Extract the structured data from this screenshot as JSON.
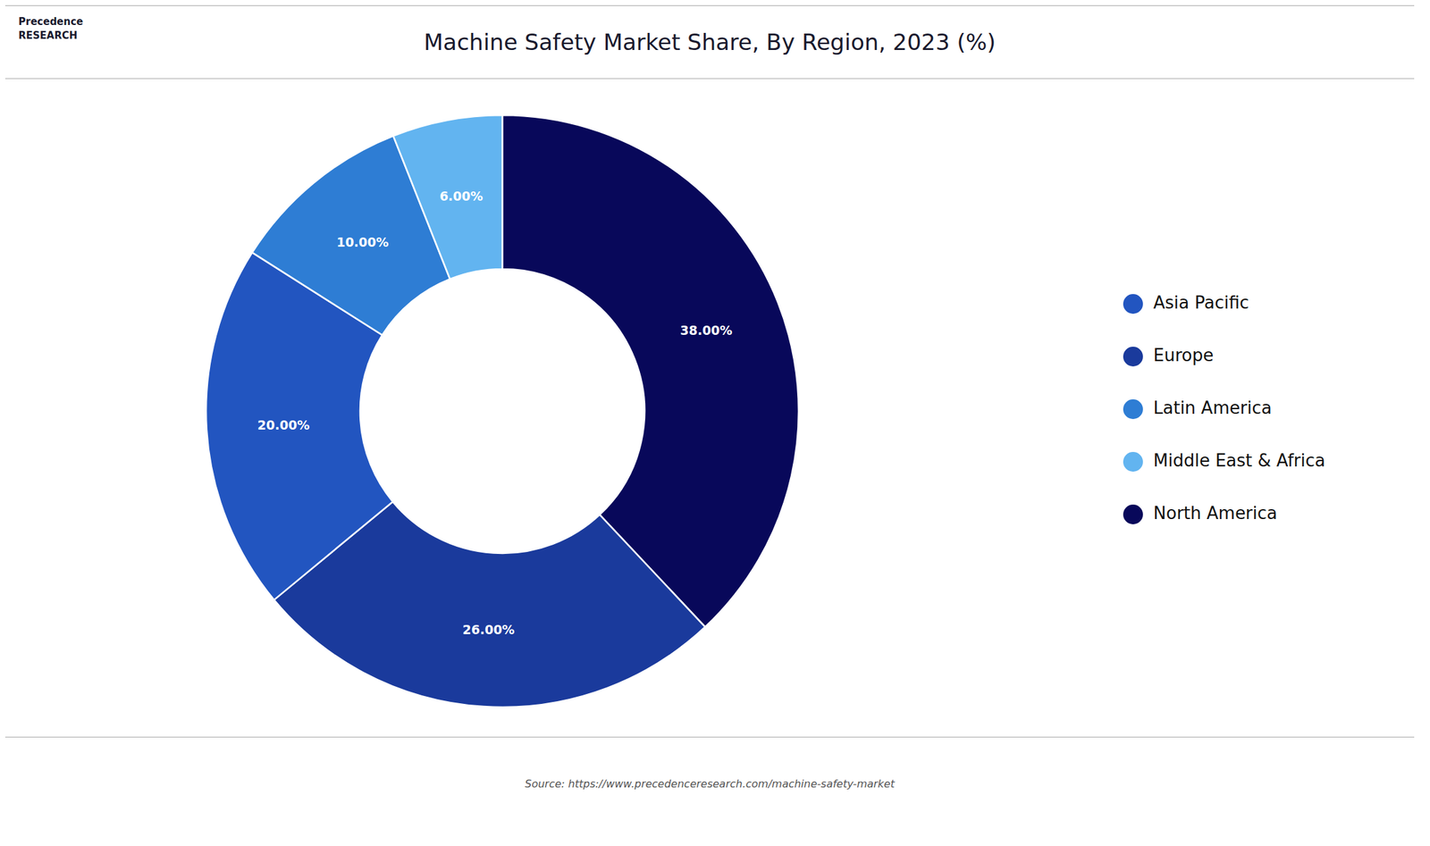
{
  "chart_data": {
    "type": "pie",
    "title": "Machine Safety Market Share, By Region, 2023 (%)",
    "categories": [
      "North America",
      "Europe",
      "Asia Pacific",
      "Latin America",
      "Middle East & Africa"
    ],
    "values": [
      38.0,
      26.0,
      20.0,
      10.0,
      6.0
    ],
    "value_labels": [
      "38.00%",
      "26.00%",
      "20.00%",
      "10.00%",
      "6.00%"
    ],
    "colors": [
      "#08085a",
      "#1a3a9c",
      "#2255c0",
      "#2e7dd4",
      "#62b4f0"
    ],
    "data_labels": true,
    "legend": "right",
    "annotations": [
      "Precedence\nRESEARCH",
      "Source: https://www.precedenceresearch.com/machine-safety-market"
    ]
  }
}
